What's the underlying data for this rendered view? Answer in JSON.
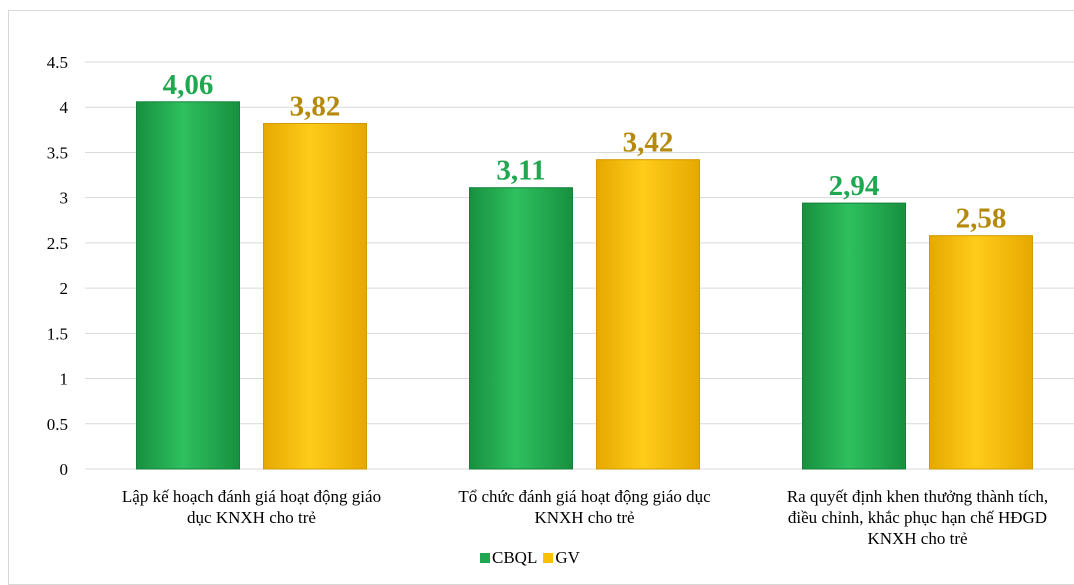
{
  "chart_data": {
    "type": "bar",
    "categories": [
      "Lập kế hoạch đánh giá hoạt động giáo\ndục KNXH cho trẻ",
      "Tổ chức đánh giá hoạt động giáo dục\nKNXH cho trẻ",
      "Ra quyết định khen thưởng thành tích,\nđiều chỉnh, khắc phục hạn chế HĐGD\nKNXH cho trẻ"
    ],
    "series": [
      {
        "name": "CBQL",
        "values": [
          4.06,
          3.11,
          2.94
        ],
        "labels": [
          "4,06",
          "3,11",
          "2,94"
        ],
        "color": "#1fa84f",
        "label_color": "#1fa84f"
      },
      {
        "name": "GV",
        "values": [
          3.82,
          3.42,
          2.58
        ],
        "labels": [
          "3,82",
          "3,42",
          "2,58"
        ],
        "color": "#ffc000",
        "label_color": "#b58a0c"
      }
    ],
    "yticks": [
      "0",
      "0.5",
      "1",
      "1.5",
      "2",
      "2.5",
      "3",
      "3.5",
      "4",
      "4.5"
    ],
    "ylim": [
      0,
      4.5
    ],
    "grid": true,
    "legend": "bottom"
  }
}
